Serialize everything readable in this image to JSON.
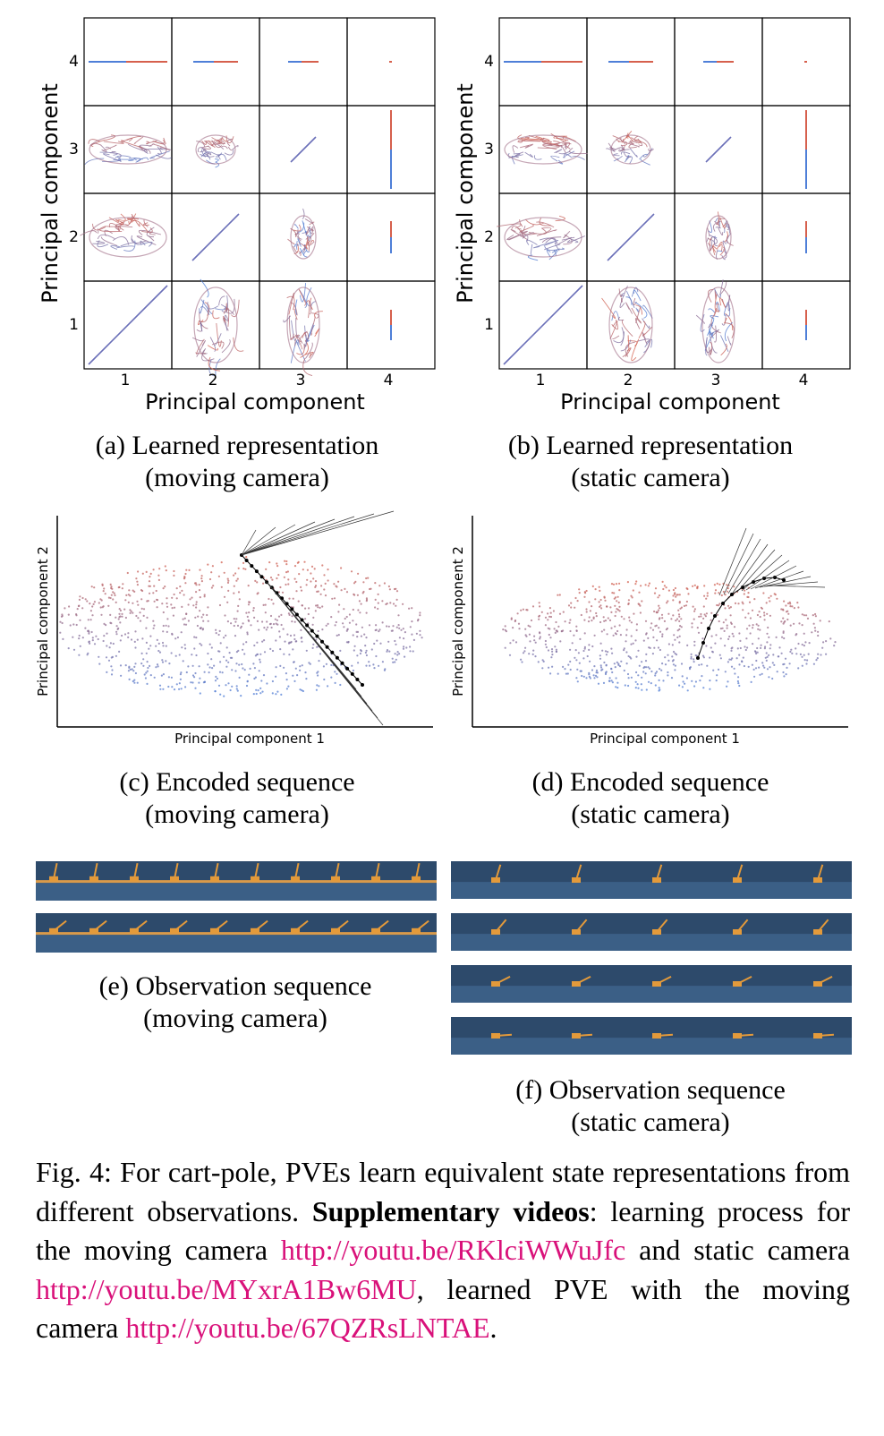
{
  "figure": {
    "panel_a": {
      "xlabel": "Principal component",
      "ylabel": "Principal component",
      "ticks": [
        "1",
        "2",
        "3",
        "4"
      ],
      "caption_line1": "(a) Learned representation",
      "caption_line2": "(moving camera)"
    },
    "panel_b": {
      "xlabel": "Principal component",
      "ylabel": "Principal component",
      "ticks": [
        "1",
        "2",
        "3",
        "4"
      ],
      "caption_line1": "(b) Learned representation",
      "caption_line2": "(static camera)"
    },
    "panel_c": {
      "xlabel": "Principal component 1",
      "ylabel": "Principal component 2",
      "caption_line1": "(c) Encoded sequence",
      "caption_line2": "(moving camera)"
    },
    "panel_d": {
      "xlabel": "Principal component 1",
      "ylabel": "Principal component 2",
      "caption_line1": "(d) Encoded sequence",
      "caption_line2": "(static camera)"
    },
    "panel_e": {
      "caption_line1": "(e) Observation sequence",
      "caption_line2": "(moving camera)"
    },
    "panel_f": {
      "caption_line1": "(f) Observation sequence",
      "caption_line2": "(static camera)"
    },
    "colors": {
      "red": "#d6604d",
      "blue": "#4f7fd8",
      "link": "#d9117a",
      "floor": "#3b5f86"
    }
  },
  "caption": {
    "prefix": "Fig. 4: For cart-pole, PVEs learn equivalent state representations from different observations. ",
    "bold": "Supplementary videos",
    "part1": ": learning process for the moving camera ",
    "link1": "http://youtu.be/RKlciWWuJfc",
    "part2": " and static camera ",
    "link2": "http://youtu.be/MYxrA1Bw6MU",
    "part3": ", learned PVE with the moving camera ",
    "link3": "http://youtu.be/67QZRsLNTAE",
    "end": "."
  }
}
